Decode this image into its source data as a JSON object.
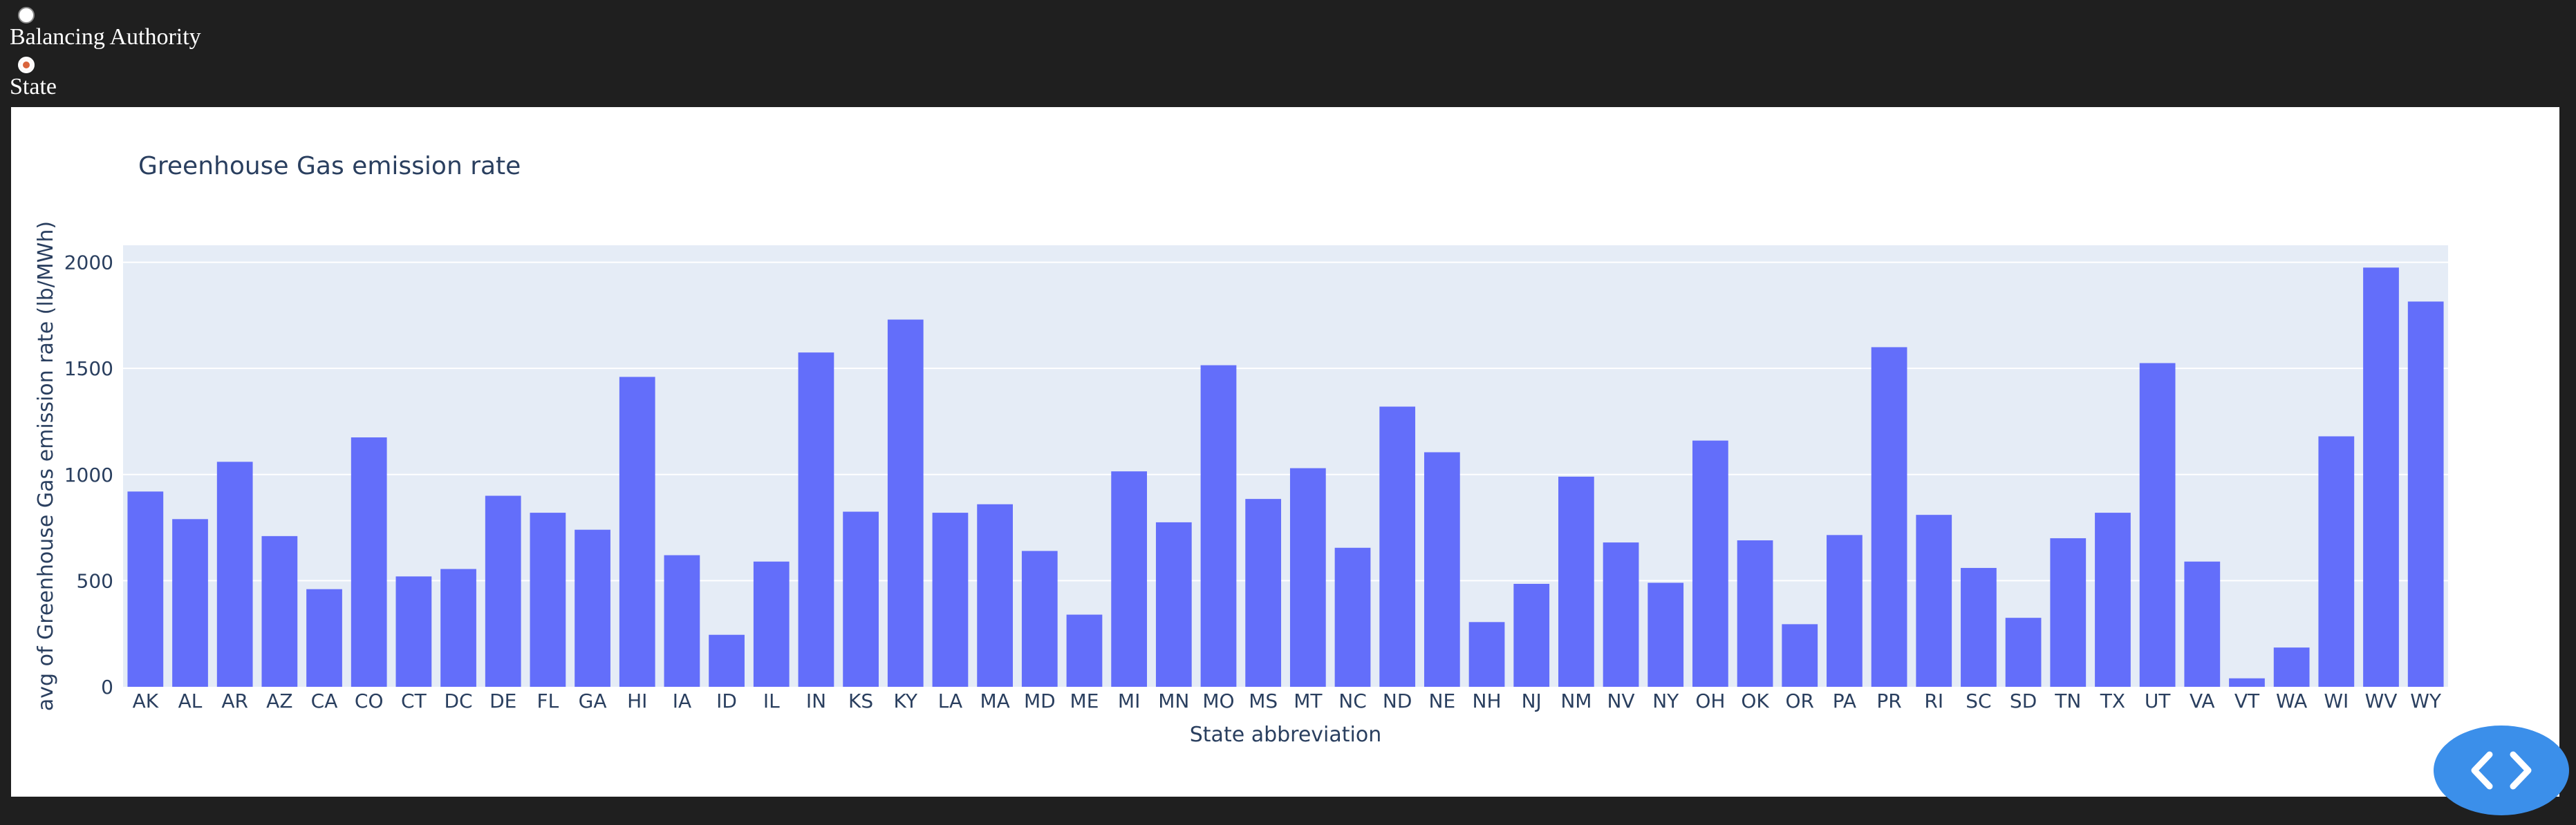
{
  "controls": {
    "group_by_options": [
      {
        "label": "Balancing Authority",
        "selected": false
      },
      {
        "label": "State",
        "selected": true
      }
    ]
  },
  "chart_data": {
    "type": "bar",
    "title": "Greenhouse Gas emission rate",
    "xlabel": "State abbreviation",
    "ylabel": "avg of Greenhouse Gas emission rate (lb/MWh)",
    "ylim": [
      0,
      2080
    ],
    "yticks": [
      0,
      500,
      1000,
      1500,
      2000
    ],
    "grid": true,
    "bar_color": "#636efa",
    "plot_bg": "#e5ecf6",
    "categories": [
      "AK",
      "AL",
      "AR",
      "AZ",
      "CA",
      "CO",
      "CT",
      "DC",
      "DE",
      "FL",
      "GA",
      "HI",
      "IA",
      "ID",
      "IL",
      "IN",
      "KS",
      "KY",
      "LA",
      "MA",
      "MD",
      "ME",
      "MI",
      "MN",
      "MO",
      "MS",
      "MT",
      "NC",
      "ND",
      "NE",
      "NH",
      "NJ",
      "NM",
      "NV",
      "NY",
      "OH",
      "OK",
      "OR",
      "PA",
      "PR",
      "RI",
      "SC",
      "SD",
      "TN",
      "TX",
      "UT",
      "VA",
      "VT",
      "WA",
      "WI",
      "WV",
      "WY"
    ],
    "values": [
      920,
      790,
      1060,
      710,
      460,
      1175,
      520,
      555,
      900,
      820,
      740,
      1460,
      620,
      245,
      590,
      1575,
      825,
      1730,
      820,
      860,
      640,
      340,
      1015,
      775,
      1515,
      885,
      1030,
      655,
      1320,
      1105,
      305,
      485,
      990,
      680,
      490,
      1160,
      690,
      295,
      715,
      1600,
      810,
      560,
      325,
      700,
      820,
      1525,
      590,
      40,
      185,
      1180,
      1975,
      1815
    ]
  },
  "fab": {
    "icon": "code-icon",
    "color": "#3b8fea"
  }
}
